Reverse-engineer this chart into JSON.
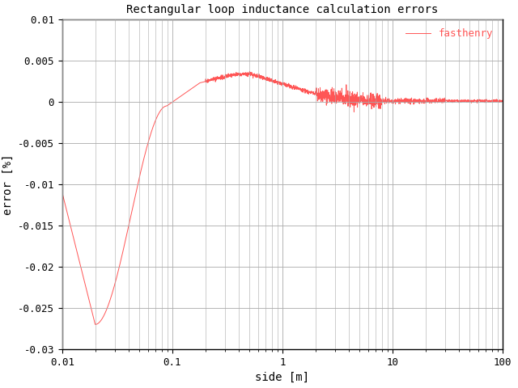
{
  "title": "Rectangular loop inductance calculation errors",
  "xlabel": "side [m]",
  "ylabel": "error [%]",
  "legend_label": "fasthenry",
  "line_color": "#ff5555",
  "background_color": "#ffffff",
  "grid_color": "#aaaaaa",
  "xlim_log": [
    -2,
    2
  ],
  "ylim": [
    -0.03,
    0.01
  ],
  "yticks": [
    -0.03,
    -0.025,
    -0.02,
    -0.015,
    -0.01,
    -0.005,
    0,
    0.005,
    0.01
  ],
  "ytick_labels": [
    "-0.03",
    "-0.025",
    "-0.02",
    "-0.015",
    "-0.01",
    "-0.005",
    "0",
    "0.005",
    "0.01"
  ],
  "xtick_labels": [
    "0.01",
    "0.1",
    "1",
    "10",
    "100"
  ],
  "figsize": [
    6.4,
    4.8
  ],
  "dpi": 100,
  "title_fontsize": 10,
  "axis_fontsize": 10,
  "legend_fontsize": 9,
  "tick_fontsize": 9
}
